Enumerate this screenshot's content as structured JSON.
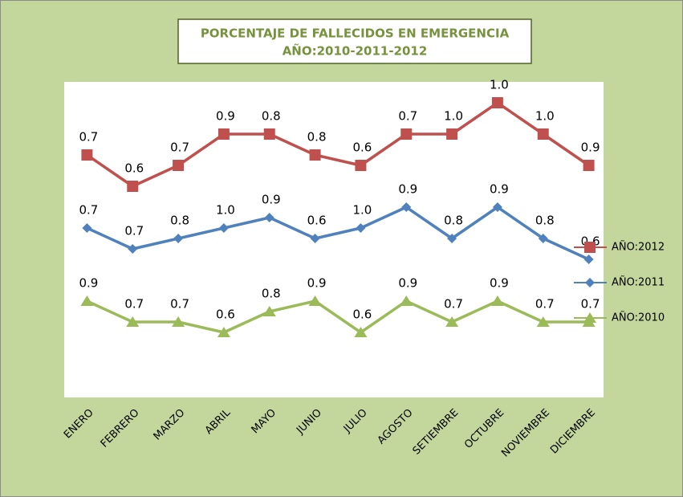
{
  "chart_data": {
    "type": "line",
    "stacked": true,
    "title": [
      "PORCENTAJE DE FALLECIDOS EN EMERGENCIA",
      "AÑO:2010-2011-2012"
    ],
    "categories": [
      "ENERO",
      "FEBRERO",
      "MARZO",
      "ABRIL",
      "MAYO",
      "JUNIO",
      "JULIO",
      "AGOSTO",
      "SETIEMBRE",
      "OCTUBRE",
      "NOVIEMBRE",
      "DICIEMBRE"
    ],
    "ylim": [
      0,
      3
    ],
    "series": [
      {
        "name": "AÑO:2010",
        "color": "#9bbb59",
        "marker": "triangle",
        "values": [
          0.9,
          0.7,
          0.7,
          0.6,
          0.8,
          0.9,
          0.6,
          0.9,
          0.7,
          0.9,
          0.7,
          0.7
        ],
        "value_labels": [
          "0.9",
          "0.7",
          "0.7",
          "0.6",
          "0.8",
          "0.9",
          "0.6",
          "0.9",
          "0.7",
          "0.9",
          "0.7",
          "0.7"
        ]
      },
      {
        "name": "AÑO:2011",
        "color": "#4f81bd",
        "marker": "diamond",
        "values": [
          0.7,
          0.7,
          0.8,
          1,
          0.9,
          0.6,
          1,
          0.9,
          0.8,
          0.9,
          0.8,
          0.6
        ],
        "value_labels": [
          "0.7",
          "0.7",
          "0.8",
          "1.0",
          "0.9",
          "0.6",
          "1.0",
          "0.9",
          "0.8",
          "0.9",
          "0.8",
          "0.6"
        ]
      },
      {
        "name": "AÑO:2012",
        "color": "#c0504d",
        "marker": "square",
        "values": [
          0.7,
          0.6,
          0.7,
          0.9,
          0.8,
          0.8,
          0.6,
          0.7,
          1,
          1,
          1,
          0.9
        ],
        "value_labels": [
          "0.7",
          "0.6",
          "0.7",
          "0.9",
          "0.8",
          "0.8",
          "0.6",
          "0.7",
          "1.0",
          "1.0",
          "1.0",
          "0.9"
        ]
      }
    ]
  }
}
